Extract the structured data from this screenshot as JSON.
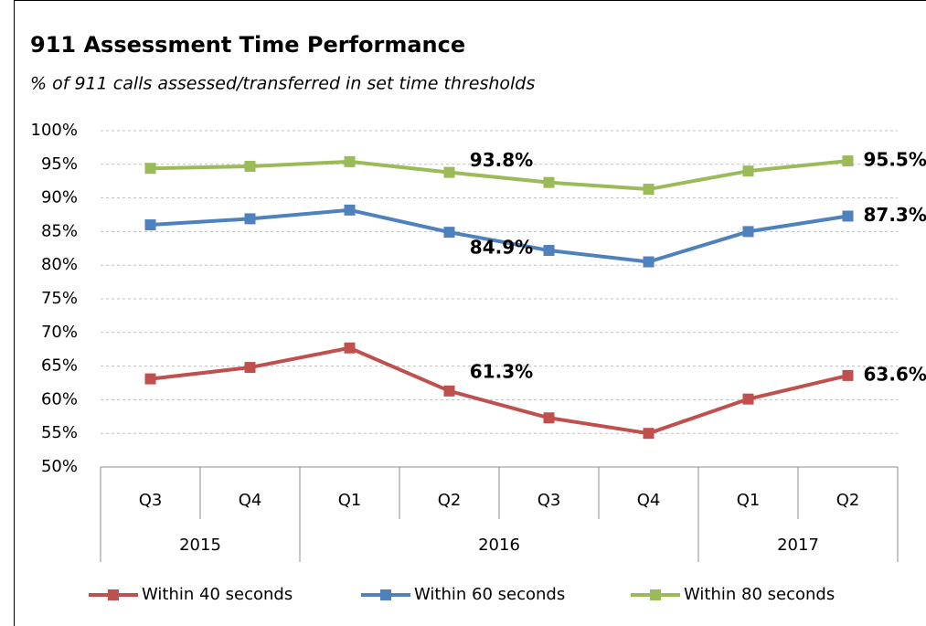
{
  "chart_data": {
    "type": "line",
    "title": "911 Assessment Time Performance",
    "subtitle": "% of 911 calls assessed/transferred in set time thresholds",
    "categories": [
      "Q3",
      "Q4",
      "Q1",
      "Q2",
      "Q3",
      "Q4",
      "Q1",
      "Q2"
    ],
    "x_groups": [
      {
        "name": "2015",
        "count": 2
      },
      {
        "name": "2016",
        "count": 4
      },
      {
        "name": "2017",
        "count": 2
      }
    ],
    "series": [
      {
        "name": "Within 40 seconds",
        "color": "#c0504d",
        "values": [
          63.1,
          64.8,
          67.7,
          61.3,
          57.3,
          55.0,
          60.1,
          63.6
        ],
        "value_labels": [
          null,
          null,
          null,
          "61.3%",
          null,
          null,
          null,
          "63.6%"
        ]
      },
      {
        "name": "Within 60 seconds",
        "color": "#4f81bd",
        "values": [
          86.0,
          86.9,
          88.2,
          84.9,
          82.2,
          80.5,
          85.0,
          87.3
        ],
        "value_labels": [
          null,
          null,
          null,
          "84.9%",
          null,
          null,
          null,
          "87.3%"
        ]
      },
      {
        "name": "Within 80 seconds",
        "color": "#9bbb59",
        "values": [
          94.4,
          94.7,
          95.4,
          93.8,
          92.3,
          91.3,
          94.0,
          95.5
        ],
        "value_labels": [
          null,
          null,
          null,
          "93.8%",
          null,
          null,
          null,
          "95.5%"
        ]
      }
    ],
    "ylim": [
      50,
      100
    ],
    "yticks": [
      {
        "value": 50,
        "label": "50%"
      },
      {
        "value": 55,
        "label": "55%"
      },
      {
        "value": 60,
        "label": "60%"
      },
      {
        "value": 65,
        "label": "65%"
      },
      {
        "value": 70,
        "label": "70%"
      },
      {
        "value": 75,
        "label": "75%"
      },
      {
        "value": 80,
        "label": "80%"
      },
      {
        "value": 85,
        "label": "85%"
      },
      {
        "value": 90,
        "label": "90%"
      },
      {
        "value": 95,
        "label": "95%"
      },
      {
        "value": 100,
        "label": "100%"
      }
    ],
    "grid": true,
    "legend": "bottom"
  }
}
